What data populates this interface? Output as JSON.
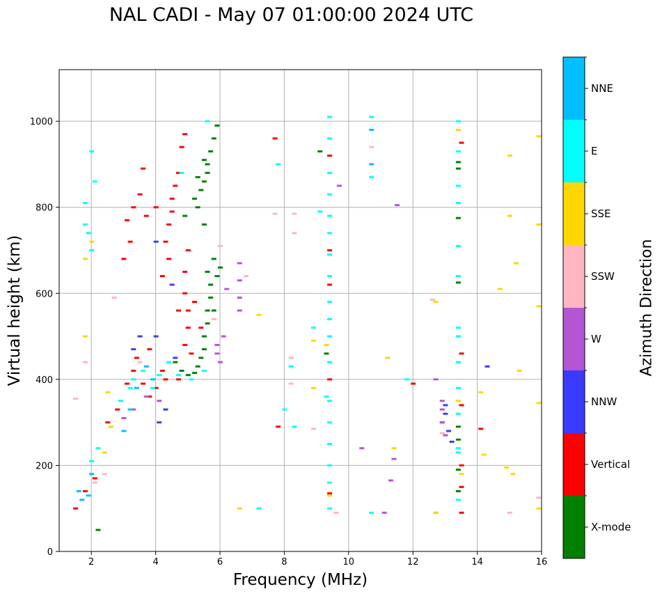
{
  "title": "NAL CADI - May 07 01:00:00 2024 UTC",
  "colorbar": {
    "label": "Azimuth Direction",
    "entries": [
      {
        "name": "X-mode",
        "color": "#008000"
      },
      {
        "name": "Vertical",
        "color": "#ff0000"
      },
      {
        "name": "NNW",
        "color": "#3a3aff"
      },
      {
        "name": "W",
        "color": "#b455d4"
      },
      {
        "name": "SSW",
        "color": "#ffb6c1"
      },
      {
        "name": "SSE",
        "color": "#ffd700"
      },
      {
        "name": "E",
        "color": "#00ffff"
      },
      {
        "name": "NNE",
        "color": "#00bfff"
      }
    ]
  },
  "chart_data": {
    "type": "scatter",
    "title": "NAL CADI - May 07 01:00:00 2024 UTC",
    "xlabel": "Frequency (MHz)",
    "ylabel": "Virtual height (km)",
    "xlim": [
      1,
      16
    ],
    "ylim": [
      0,
      1120
    ],
    "xticks": [
      2,
      4,
      6,
      8,
      10,
      12,
      14,
      16
    ],
    "yticks": [
      0,
      200,
      400,
      600,
      800,
      1000
    ],
    "grid": true,
    "series": [
      {
        "name": "X-mode",
        "points": [
          [
            4.6,
            440
          ],
          [
            4.8,
            420
          ],
          [
            5.0,
            410
          ],
          [
            5.2,
            415
          ],
          [
            5.3,
            430
          ],
          [
            5.4,
            450
          ],
          [
            5.5,
            470
          ],
          [
            5.5,
            500
          ],
          [
            5.6,
            530
          ],
          [
            5.6,
            560
          ],
          [
            5.7,
            590
          ],
          [
            5.8,
            560
          ],
          [
            5.7,
            620
          ],
          [
            5.6,
            650
          ],
          [
            5.8,
            680
          ],
          [
            5.5,
            760
          ],
          [
            5.3,
            800
          ],
          [
            5.4,
            840
          ],
          [
            5.5,
            860
          ],
          [
            5.6,
            880
          ],
          [
            5.6,
            900
          ],
          [
            5.7,
            930
          ],
          [
            5.8,
            960
          ],
          [
            5.9,
            990
          ],
          [
            5.5,
            910
          ],
          [
            5.3,
            870
          ],
          [
            4.9,
            780
          ],
          [
            5.2,
            820
          ],
          [
            5.9,
            640
          ],
          [
            6.0,
            660
          ],
          [
            13.4,
            140
          ],
          [
            13.4,
            190
          ],
          [
            13.4,
            260
          ],
          [
            13.4,
            290
          ],
          [
            13.4,
            625
          ],
          [
            13.4,
            775
          ],
          [
            13.4,
            890
          ],
          [
            13.4,
            905
          ],
          [
            9.3,
            460
          ],
          [
            9.1,
            930
          ],
          [
            2.2,
            50
          ]
        ]
      },
      {
        "name": "Vertical",
        "points": [
          [
            1.5,
            100
          ],
          [
            1.8,
            140
          ],
          [
            2.1,
            170
          ],
          [
            2.5,
            300
          ],
          [
            2.8,
            330
          ],
          [
            3.1,
            390
          ],
          [
            3.3,
            420
          ],
          [
            3.4,
            450
          ],
          [
            3.6,
            390
          ],
          [
            3.8,
            360
          ],
          [
            3.8,
            470
          ],
          [
            4.0,
            380
          ],
          [
            4.2,
            420
          ],
          [
            4.2,
            640
          ],
          [
            4.3,
            400
          ],
          [
            4.3,
            720
          ],
          [
            4.4,
            760
          ],
          [
            4.5,
            790
          ],
          [
            4.5,
            820
          ],
          [
            4.6,
            850
          ],
          [
            4.7,
            880
          ],
          [
            4.8,
            940
          ],
          [
            4.9,
            970
          ],
          [
            4.9,
            480
          ],
          [
            5.0,
            520
          ],
          [
            5.0,
            560
          ],
          [
            4.9,
            600
          ],
          [
            4.9,
            650
          ],
          [
            5.0,
            700
          ],
          [
            4.0,
            800
          ],
          [
            3.7,
            780
          ],
          [
            3.5,
            830
          ],
          [
            3.6,
            890
          ],
          [
            3.2,
            720
          ],
          [
            3.0,
            680
          ],
          [
            3.1,
            770
          ],
          [
            3.3,
            800
          ],
          [
            4.4,
            680
          ],
          [
            4.7,
            560
          ],
          [
            5.1,
            460
          ],
          [
            5.4,
            520
          ],
          [
            5.2,
            580
          ],
          [
            4.7,
            400
          ],
          [
            7.8,
            290
          ],
          [
            7.7,
            960
          ],
          [
            9.4,
            700
          ],
          [
            9.4,
            620
          ],
          [
            9.4,
            920
          ],
          [
            9.4,
            400
          ],
          [
            9.4,
            135
          ],
          [
            12.0,
            390
          ],
          [
            13.5,
            90
          ],
          [
            13.5,
            150
          ],
          [
            13.5,
            200
          ],
          [
            13.5,
            340
          ],
          [
            13.5,
            460
          ],
          [
            13.5,
            950
          ],
          [
            14.1,
            285
          ]
        ]
      },
      {
        "name": "NNW",
        "points": [
          [
            3.5,
            500
          ],
          [
            3.3,
            470
          ],
          [
            4.0,
            720
          ],
          [
            4.5,
            620
          ],
          [
            4.1,
            300
          ],
          [
            4.3,
            330
          ],
          [
            4.6,
            450
          ],
          [
            4.0,
            500
          ],
          [
            13.2,
            255
          ],
          [
            13.0,
            320
          ],
          [
            13.0,
            340
          ],
          [
            13.1,
            280
          ],
          [
            12.9,
            300
          ],
          [
            14.3,
            430
          ],
          [
            12.7,
            90
          ]
        ]
      },
      {
        "name": "W",
        "points": [
          [
            3.3,
            330
          ],
          [
            3.0,
            310
          ],
          [
            3.7,
            360
          ],
          [
            4.1,
            350
          ],
          [
            5.9,
            460
          ],
          [
            5.9,
            480
          ],
          [
            6.0,
            440
          ],
          [
            6.6,
            560
          ],
          [
            6.6,
            590
          ],
          [
            6.6,
            630
          ],
          [
            6.6,
            670
          ],
          [
            6.2,
            610
          ],
          [
            6.1,
            500
          ],
          [
            12.9,
            330
          ],
          [
            12.9,
            350
          ],
          [
            12.9,
            300
          ],
          [
            12.7,
            400
          ],
          [
            13.0,
            270
          ],
          [
            11.4,
            215
          ],
          [
            10.4,
            240
          ],
          [
            11.1,
            90
          ],
          [
            11.5,
            805
          ],
          [
            11.3,
            165
          ],
          [
            9.7,
            850
          ]
        ]
      },
      {
        "name": "SSW",
        "points": [
          [
            1.5,
            355
          ],
          [
            1.8,
            440
          ],
          [
            2.1,
            160
          ],
          [
            2.4,
            180
          ],
          [
            2.7,
            590
          ],
          [
            3.7,
            430
          ],
          [
            3.5,
            440
          ],
          [
            6.0,
            710
          ],
          [
            5.8,
            540
          ],
          [
            7.7,
            785
          ],
          [
            8.3,
            740
          ],
          [
            8.3,
            785
          ],
          [
            8.2,
            450
          ],
          [
            8.9,
            285
          ],
          [
            8.2,
            390
          ],
          [
            9.6,
            90
          ],
          [
            10.7,
            940
          ],
          [
            12.6,
            585
          ],
          [
            12.9,
            275
          ],
          [
            15.0,
            90
          ],
          [
            15.9,
            125
          ],
          [
            6.8,
            640
          ]
        ]
      },
      {
        "name": "SSE",
        "points": [
          [
            1.8,
            500
          ],
          [
            1.8,
            680
          ],
          [
            2.0,
            720
          ],
          [
            2.4,
            230
          ],
          [
            2.5,
            370
          ],
          [
            2.6,
            290
          ],
          [
            6.6,
            100
          ],
          [
            7.2,
            550
          ],
          [
            8.9,
            490
          ],
          [
            8.9,
            380
          ],
          [
            9.4,
            130
          ],
          [
            9.3,
            480
          ],
          [
            11.2,
            450
          ],
          [
            11.4,
            240
          ],
          [
            12.7,
            580
          ],
          [
            12.7,
            90
          ],
          [
            13.4,
            980
          ],
          [
            13.4,
            350
          ],
          [
            13.5,
            180
          ],
          [
            14.1,
            370
          ],
          [
            14.2,
            225
          ],
          [
            14.7,
            610
          ],
          [
            14.9,
            195
          ],
          [
            15.0,
            920
          ],
          [
            15.0,
            780
          ],
          [
            15.1,
            180
          ],
          [
            15.2,
            670
          ],
          [
            15.3,
            420
          ],
          [
            15.9,
            570
          ],
          [
            15.9,
            760
          ],
          [
            15.9,
            965
          ],
          [
            15.9,
            345
          ],
          [
            15.9,
            100
          ]
        ]
      },
      {
        "name": "E",
        "points": [
          [
            1.8,
            810
          ],
          [
            1.8,
            760
          ],
          [
            1.9,
            740
          ],
          [
            2.0,
            930
          ],
          [
            2.1,
            860
          ],
          [
            2.0,
            700
          ],
          [
            2.0,
            210
          ],
          [
            2.2,
            240
          ],
          [
            2.9,
            350
          ],
          [
            3.2,
            380
          ],
          [
            3.3,
            400
          ],
          [
            3.6,
            420
          ],
          [
            3.9,
            380
          ],
          [
            4.1,
            410
          ],
          [
            4.4,
            440
          ],
          [
            4.7,
            410
          ],
          [
            5.1,
            400
          ],
          [
            5.5,
            420
          ],
          [
            5.6,
            1000
          ],
          [
            4.8,
            880
          ],
          [
            7.8,
            900
          ],
          [
            8.0,
            330
          ],
          [
            8.3,
            290
          ],
          [
            8.2,
            430
          ],
          [
            8.9,
            520
          ],
          [
            9.1,
            790
          ],
          [
            9.3,
            360
          ],
          [
            9.4,
            1010
          ],
          [
            9.4,
            960
          ],
          [
            9.4,
            880
          ],
          [
            9.4,
            830
          ],
          [
            9.4,
            780
          ],
          [
            9.4,
            740
          ],
          [
            9.4,
            690
          ],
          [
            9.4,
            640
          ],
          [
            9.4,
            580
          ],
          [
            9.4,
            540
          ],
          [
            9.4,
            500
          ],
          [
            9.4,
            440
          ],
          [
            9.4,
            350
          ],
          [
            9.4,
            300
          ],
          [
            9.4,
            250
          ],
          [
            9.4,
            200
          ],
          [
            9.4,
            160
          ],
          [
            9.4,
            100
          ],
          [
            10.7,
            1010
          ],
          [
            10.7,
            870
          ],
          [
            10.7,
            90
          ],
          [
            11.8,
            400
          ],
          [
            13.4,
            1000
          ],
          [
            13.4,
            930
          ],
          [
            13.4,
            850
          ],
          [
            13.4,
            810
          ],
          [
            13.4,
            710
          ],
          [
            13.4,
            640
          ],
          [
            13.4,
            520
          ],
          [
            13.4,
            500
          ],
          [
            13.4,
            440
          ],
          [
            13.4,
            380
          ],
          [
            13.4,
            320
          ],
          [
            13.4,
            240
          ],
          [
            13.4,
            230
          ],
          [
            13.4,
            120
          ],
          [
            7.2,
            100
          ]
        ]
      },
      {
        "name": "NNE",
        "points": [
          [
            1.6,
            140
          ],
          [
            1.7,
            120
          ],
          [
            1.9,
            130
          ],
          [
            2.0,
            180
          ],
          [
            3.0,
            280
          ],
          [
            3.2,
            330
          ],
          [
            3.4,
            380
          ],
          [
            3.7,
            430
          ],
          [
            3.9,
            400
          ],
          [
            10.7,
            980
          ],
          [
            10.7,
            900
          ]
        ]
      }
    ]
  }
}
